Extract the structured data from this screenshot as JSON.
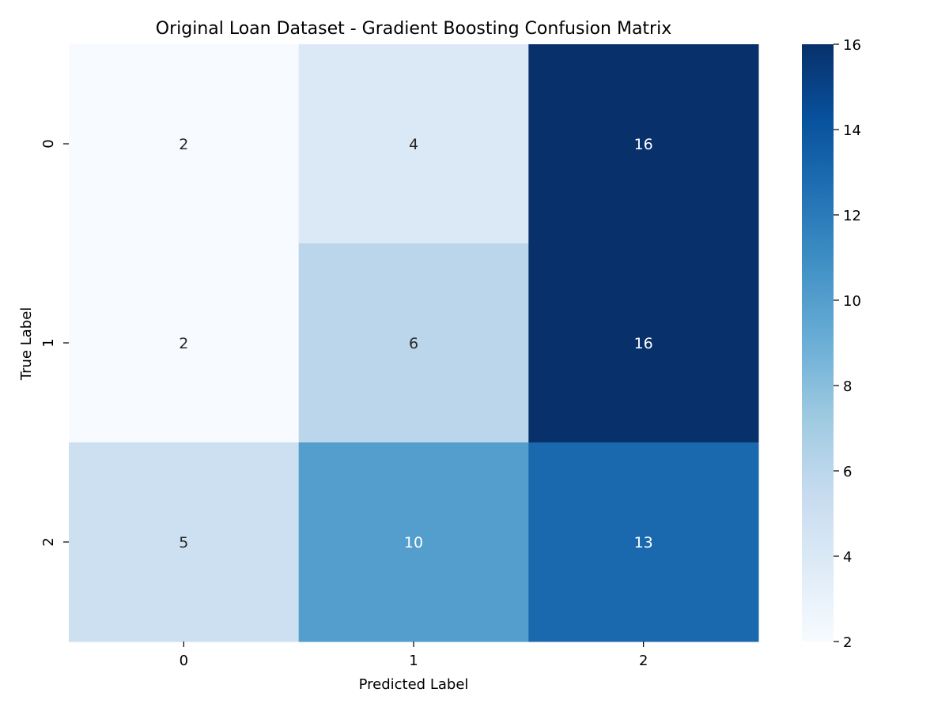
{
  "chart_data": {
    "type": "heatmap",
    "title": "Original Loan Dataset - Gradient Boosting Confusion Matrix",
    "xlabel": "Predicted Label",
    "ylabel": "True Label",
    "x_categories": [
      "0",
      "1",
      "2"
    ],
    "y_categories": [
      "0",
      "1",
      "2"
    ],
    "values": [
      [
        2,
        4,
        16
      ],
      [
        2,
        6,
        16
      ],
      [
        5,
        10,
        13
      ]
    ],
    "colorbar": {
      "colormap": "Blues",
      "range": [
        2,
        16
      ],
      "ticks": [
        "2",
        "4",
        "6",
        "8",
        "10",
        "12",
        "14",
        "16"
      ]
    },
    "grid": false,
    "legend": "none"
  }
}
